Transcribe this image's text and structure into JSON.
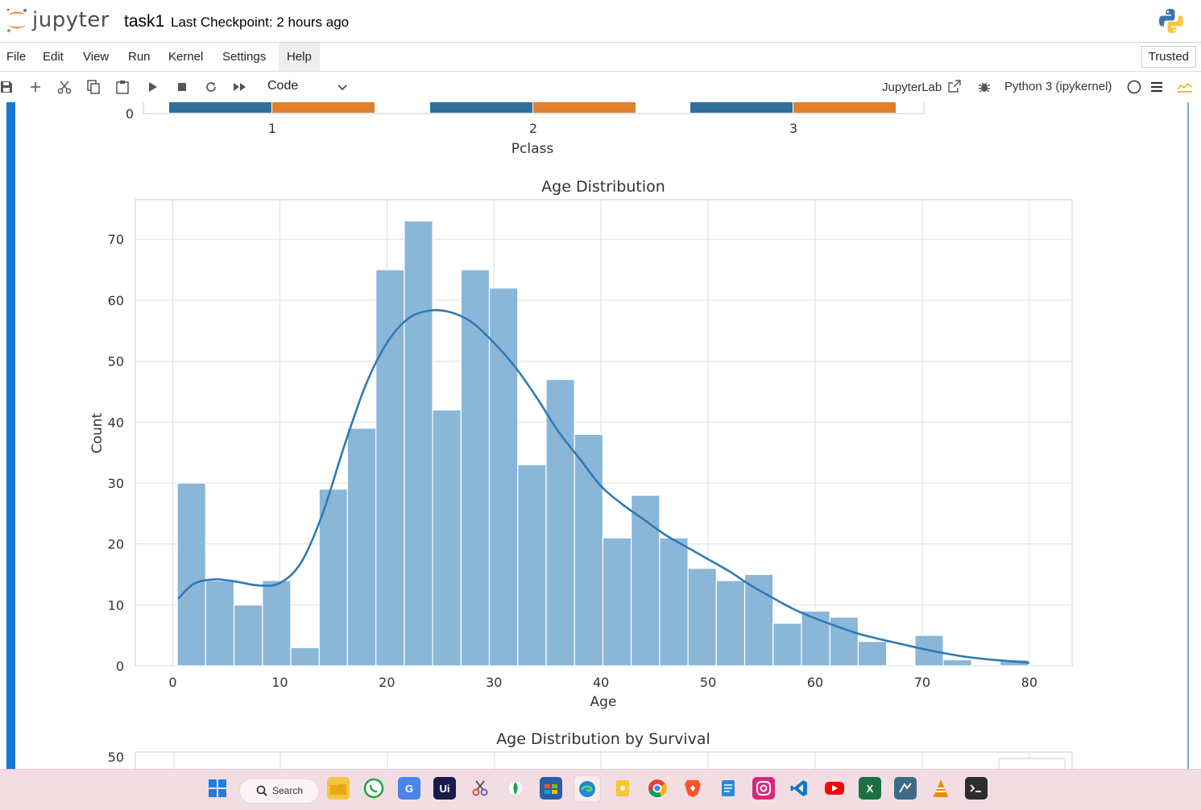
{
  "header": {
    "logo_text": "jupyter",
    "notebook_title": "task1",
    "checkpoint": "Last Checkpoint: 2 hours ago"
  },
  "menu": {
    "items": [
      "File",
      "Edit",
      "View",
      "Run",
      "Kernel",
      "Settings",
      "Help"
    ],
    "active": "Help",
    "trusted": "Trusted"
  },
  "toolbar": {
    "cell_type": "Code",
    "jupyterlab_label": "JupyterLab",
    "kernel": "Python 3 (ipykernel)"
  },
  "taskbar": {
    "search_label": "Search"
  },
  "colors": {
    "accent": "#1976d2",
    "bar_fill": "#8ab6d8",
    "kde_line": "#2d7bb6",
    "series_blue": "#2e6f9e",
    "series_orange": "#e07f2c"
  },
  "chart_data": [
    {
      "type": "bar",
      "partial": true,
      "xlabel": "Pclass",
      "categories": [
        "1",
        "2",
        "3"
      ],
      "visible_ytick": "0",
      "series_colors": [
        "#2e6f9e",
        "#e07f2c"
      ]
    },
    {
      "type": "bar",
      "title": "Age Distribution",
      "xlabel": "Age",
      "ylabel": "Count",
      "xlim": [
        -3.5,
        84
      ],
      "ylim": [
        0,
        76.5
      ],
      "xticks": [
        0,
        10,
        20,
        30,
        40,
        50,
        60,
        70,
        80
      ],
      "yticks": [
        0,
        10,
        20,
        30,
        40,
        50,
        60,
        70
      ],
      "grid": true,
      "bin_start": 0.42,
      "bin_width": 2.65,
      "counts": [
        30,
        14,
        10,
        14,
        3,
        29,
        39,
        65,
        73,
        42,
        65,
        62,
        33,
        47,
        38,
        21,
        28,
        21,
        16,
        14,
        15,
        7,
        9,
        8,
        4,
        0,
        5,
        1,
        0,
        1
      ],
      "kde": {
        "x": [
          0.5,
          2,
          4,
          6,
          8,
          10,
          12,
          14,
          16,
          18,
          20,
          22,
          24,
          26,
          28,
          30,
          32,
          34,
          36,
          38,
          40,
          42,
          44,
          46,
          48,
          50,
          52,
          54,
          56,
          58,
          60,
          62,
          64,
          66,
          68,
          70,
          72,
          74,
          76,
          78,
          80
        ],
        "y": [
          11,
          13.5,
          14.2,
          13.8,
          13.2,
          13.6,
          17,
          25,
          36,
          46,
          53,
          57,
          58.3,
          58,
          56.3,
          53,
          49,
          44,
          38.5,
          34,
          29.5,
          26.5,
          24,
          21.5,
          19.5,
          17.5,
          15.5,
          13.2,
          11.2,
          9.3,
          7.8,
          6.5,
          5.3,
          4.4,
          3.6,
          2.8,
          2.1,
          1.5,
          1.1,
          0.8,
          0.5
        ]
      }
    },
    {
      "type": "bar",
      "partial": true,
      "title": "Age Distribution by Survival",
      "visible_ytick": "50",
      "legend_position": "top-right"
    }
  ]
}
